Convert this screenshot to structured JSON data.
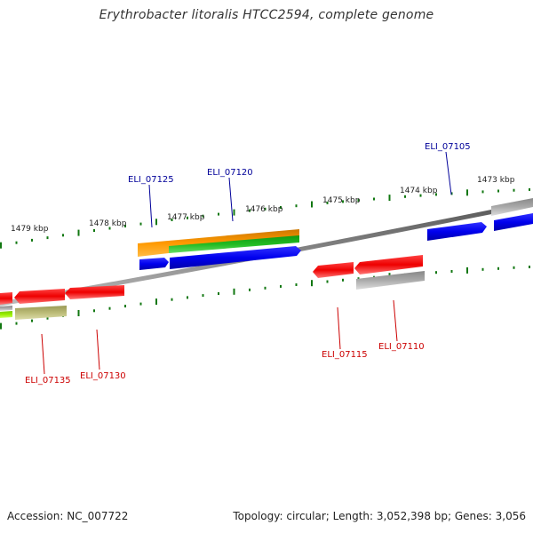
{
  "title": "Erythrobacter litoralis HTCC2594, complete genome",
  "footer": {
    "accession": "Accession: NC_007722",
    "summary": "Topology: circular; Length: 3,052,398 bp; Genes: 3,056"
  },
  "tick_labels": [
    "1479 kbp",
    "1478 kbp",
    "1477 kbp",
    "1476 kbp",
    "1475 kbp",
    "1474 kbp",
    "1473 kbp"
  ],
  "genes_top": [
    {
      "label": "ELI_07125",
      "color": "#000099"
    },
    {
      "label": "ELI_07120",
      "color": "#000099"
    },
    {
      "label": "ELI_07105",
      "color": "#000099"
    }
  ],
  "genes_bottom": [
    {
      "label": "ELI_07115",
      "color": "#cc0000"
    },
    {
      "label": "ELI_07110",
      "color": "#cc0000"
    },
    {
      "label": "ELI_07135",
      "color": "#cc0000"
    },
    {
      "label": "ELI_07130",
      "color": "#cc0000"
    }
  ],
  "feature_colors": {
    "cds_forward": "#0000ee",
    "cds_reverse": "#ee0000",
    "gene": "#aaaaaa",
    "rna": "#22bb22",
    "orange_feature": "#ff9900",
    "olive_feature": "#bbbb77",
    "lime_feature": "#99ee00",
    "backbone": "#777777"
  }
}
